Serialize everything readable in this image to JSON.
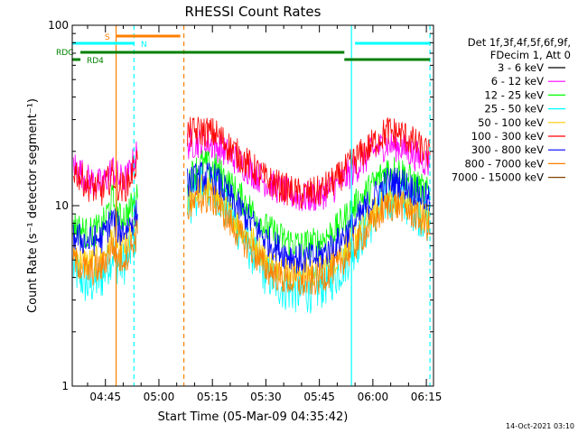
{
  "chart_data": {
    "type": "line",
    "title": "RHESSI Count Rates",
    "xlabel": "Start Time (05-Mar-09 04:35:42)",
    "ylabel": "Count Rate (s⁻¹ detector segment⁻¹)",
    "y_scale": "log",
    "ylim": [
      1,
      100
    ],
    "y_ticks": [
      {
        "value": 1,
        "label": "1"
      },
      {
        "value": 10,
        "label": "10"
      },
      {
        "value": 100,
        "label": "100"
      }
    ],
    "xlim": [
      "04:35:42",
      "06:17:00"
    ],
    "x_ticks": [
      {
        "t": "04:45",
        "label": "04:45"
      },
      {
        "t": "05:00",
        "label": "05:00"
      },
      {
        "t": "05:15",
        "label": "05:15"
      },
      {
        "t": "05:30",
        "label": "05:30"
      },
      {
        "t": "05:45",
        "label": "05:45"
      },
      {
        "t": "06:00",
        "label": "06:00"
      },
      {
        "t": "06:15",
        "label": "06:15"
      }
    ],
    "legend": {
      "position": "right",
      "header": [
        "Det 1f,3f,4f,5f,6f,9f,",
        "FDecim 1, Att 0"
      ]
    },
    "timestamp": "14-Oct-2021 03:10",
    "flag_bars": [
      {
        "label": "S",
        "color": "#ff8000",
        "segments": [
          [
            "04:48:00",
            "05:06:00"
          ]
        ]
      },
      {
        "label": "N",
        "color": "#00ffff",
        "segments": [
          [
            "04:35:42",
            "04:53:00"
          ],
          [
            "05:55:00",
            "06:16:00"
          ]
        ]
      },
      {
        "label": "RDC",
        "color": "#008000",
        "segments": [
          [
            "04:38:00",
            "05:52:00"
          ],
          [
            "05:52:00",
            "06:16:00"
          ]
        ]
      },
      {
        "label": "RD4",
        "color": "#008000",
        "segments": [
          [
            "04:35:42",
            "04:38:00"
          ]
        ]
      }
    ],
    "vertical_lines": [
      {
        "t": "04:48:00",
        "color": "#ff8000",
        "style": "solid"
      },
      {
        "t": "04:53:00",
        "color": "#00ffff",
        "style": "dashed"
      },
      {
        "t": "05:07:00",
        "color": "#ff8000",
        "style": "dashed"
      },
      {
        "t": "05:54:00",
        "color": "#00ffff",
        "style": "solid"
      },
      {
        "t": "06:16:00",
        "color": "#00ffff",
        "style": "dashed"
      }
    ],
    "series": [
      {
        "name": "3 - 6 keV",
        "color": "#000000",
        "points": []
      },
      {
        "name": "6 - 12 keV",
        "color": "#ff00ff",
        "points": [
          [
            "04:36",
            17
          ],
          [
            "04:40",
            14
          ],
          [
            "04:44",
            13
          ],
          [
            "04:47",
            16
          ],
          [
            "04:49",
            14
          ],
          [
            "04:51",
            14
          ],
          [
            "04:54",
            20
          ],
          [
            "05:08",
            22
          ],
          [
            "05:12",
            22.5
          ],
          [
            "05:16",
            21.5
          ],
          [
            "05:20",
            19
          ],
          [
            "05:25",
            16
          ],
          [
            "05:30",
            13.5
          ],
          [
            "05:35",
            12
          ],
          [
            "05:40",
            11
          ],
          [
            "05:45",
            11.3
          ],
          [
            "05:50",
            13
          ],
          [
            "05:55",
            16
          ],
          [
            "06:00",
            20
          ],
          [
            "06:04",
            22
          ],
          [
            "06:08",
            21
          ],
          [
            "06:12",
            19
          ],
          [
            "06:16",
            17
          ]
        ]
      },
      {
        "name": "12 - 25 keV",
        "color": "#00ff00",
        "points": [
          [
            "04:36",
            7.8
          ],
          [
            "04:40",
            7
          ],
          [
            "04:44",
            7.5
          ],
          [
            "04:47",
            11
          ],
          [
            "04:49",
            8.5
          ],
          [
            "04:51",
            9
          ],
          [
            "04:54",
            11
          ],
          [
            "05:08",
            14
          ],
          [
            "05:12",
            17
          ],
          [
            "05:16",
            16
          ],
          [
            "05:20",
            13
          ],
          [
            "05:25",
            10
          ],
          [
            "05:30",
            7.5
          ],
          [
            "05:35",
            6.5
          ],
          [
            "05:40",
            6
          ],
          [
            "05:45",
            6.3
          ],
          [
            "05:50",
            7.5
          ],
          [
            "05:55",
            10
          ],
          [
            "06:00",
            13
          ],
          [
            "06:04",
            16
          ],
          [
            "06:08",
            15.5
          ],
          [
            "06:12",
            13
          ],
          [
            "06:16",
            11.5
          ]
        ]
      },
      {
        "name": "25 - 50 keV",
        "color": "#00ffff",
        "points": [
          [
            "04:36",
            4.5
          ],
          [
            "04:40",
            3.6
          ],
          [
            "04:44",
            4
          ],
          [
            "04:47",
            5.5
          ],
          [
            "04:49",
            4.6
          ],
          [
            "04:51",
            5
          ],
          [
            "04:54",
            7.5
          ],
          [
            "05:08",
            10
          ],
          [
            "05:12",
            13
          ],
          [
            "05:16",
            12
          ],
          [
            "05:20",
            9
          ],
          [
            "05:25",
            6
          ],
          [
            "05:30",
            4.2
          ],
          [
            "05:35",
            3.5
          ],
          [
            "05:40",
            3.3
          ],
          [
            "05:45",
            3.5
          ],
          [
            "05:50",
            4.2
          ],
          [
            "05:55",
            6
          ],
          [
            "06:00",
            8.5
          ],
          [
            "06:04",
            11
          ],
          [
            "06:08",
            11
          ],
          [
            "06:12",
            9.5
          ],
          [
            "06:16",
            8
          ]
        ]
      },
      {
        "name": "50 - 100 keV",
        "color": "#ffcc00",
        "points": [
          [
            "04:36",
            5.5
          ],
          [
            "04:40",
            4.8
          ],
          [
            "04:44",
            5
          ],
          [
            "04:47",
            6.8
          ],
          [
            "04:49",
            5.6
          ],
          [
            "04:51",
            6
          ],
          [
            "04:54",
            8
          ],
          [
            "05:08",
            10.5
          ],
          [
            "05:12",
            12.5
          ],
          [
            "05:16",
            11.5
          ],
          [
            "05:20",
            9
          ],
          [
            "05:25",
            6.8
          ],
          [
            "05:30",
            5.2
          ],
          [
            "05:35",
            4.5
          ],
          [
            "05:40",
            4.2
          ],
          [
            "05:45",
            4.4
          ],
          [
            "05:50",
            5.2
          ],
          [
            "05:55",
            6.8
          ],
          [
            "06:00",
            9
          ],
          [
            "06:04",
            11
          ],
          [
            "06:08",
            10.8
          ],
          [
            "06:12",
            9.5
          ],
          [
            "06:16",
            8.5
          ]
        ]
      },
      {
        "name": "100 - 300 keV",
        "color": "#ff0000",
        "points": [
          [
            "04:36",
            16
          ],
          [
            "04:40",
            13
          ],
          [
            "04:44",
            12
          ],
          [
            "04:47",
            15
          ],
          [
            "04:49",
            12.5
          ],
          [
            "04:51",
            13
          ],
          [
            "04:54",
            18
          ],
          [
            "05:08",
            25
          ],
          [
            "05:12",
            26
          ],
          [
            "05:16",
            25
          ],
          [
            "05:20",
            21
          ],
          [
            "05:25",
            17
          ],
          [
            "05:30",
            14
          ],
          [
            "05:35",
            12.5
          ],
          [
            "05:40",
            11.5
          ],
          [
            "05:45",
            12
          ],
          [
            "05:50",
            14
          ],
          [
            "05:55",
            18
          ],
          [
            "06:00",
            22
          ],
          [
            "06:04",
            26
          ],
          [
            "06:08",
            25
          ],
          [
            "06:12",
            22
          ],
          [
            "06:16",
            19
          ]
        ]
      },
      {
        "name": "300 - 800 keV",
        "color": "#0000ff",
        "points": [
          [
            "04:36",
            6.8
          ],
          [
            "04:40",
            6.3
          ],
          [
            "04:44",
            6.6
          ],
          [
            "04:47",
            8.5
          ],
          [
            "04:49",
            7.2
          ],
          [
            "04:51",
            7.5
          ],
          [
            "04:54",
            9
          ],
          [
            "05:08",
            13.5
          ],
          [
            "05:12",
            14.5
          ],
          [
            "05:16",
            14
          ],
          [
            "05:20",
            11
          ],
          [
            "05:25",
            8.5
          ],
          [
            "05:30",
            6.5
          ],
          [
            "05:35",
            5.5
          ],
          [
            "05:40",
            5
          ],
          [
            "05:45",
            5.2
          ],
          [
            "05:50",
            6.2
          ],
          [
            "05:55",
            8
          ],
          [
            "06:00",
            11
          ],
          [
            "06:04",
            13.5
          ],
          [
            "06:08",
            13.5
          ],
          [
            "06:12",
            12
          ],
          [
            "06:16",
            10.5
          ]
        ]
      },
      {
        "name": "800 - 7000 keV",
        "color": "#ff8000",
        "points": [
          [
            "04:36",
            5
          ],
          [
            "04:40",
            4.3
          ],
          [
            "04:44",
            4.5
          ],
          [
            "04:47",
            6
          ],
          [
            "04:49",
            5
          ],
          [
            "04:51",
            5.3
          ],
          [
            "04:54",
            7
          ],
          [
            "05:08",
            9.5
          ],
          [
            "05:12",
            11
          ],
          [
            "05:16",
            10.5
          ],
          [
            "05:20",
            8
          ],
          [
            "05:25",
            6
          ],
          [
            "05:30",
            4.5
          ],
          [
            "05:35",
            3.9
          ],
          [
            "05:40",
            3.7
          ],
          [
            "05:45",
            3.9
          ],
          [
            "05:50",
            4.6
          ],
          [
            "05:55",
            6
          ],
          [
            "06:00",
            8
          ],
          [
            "06:04",
            10
          ],
          [
            "06:08",
            10
          ],
          [
            "06:12",
            8.8
          ],
          [
            "06:16",
            7.5
          ]
        ]
      },
      {
        "name": "7000 - 15000 keV",
        "color": "#804000",
        "points": []
      }
    ]
  }
}
